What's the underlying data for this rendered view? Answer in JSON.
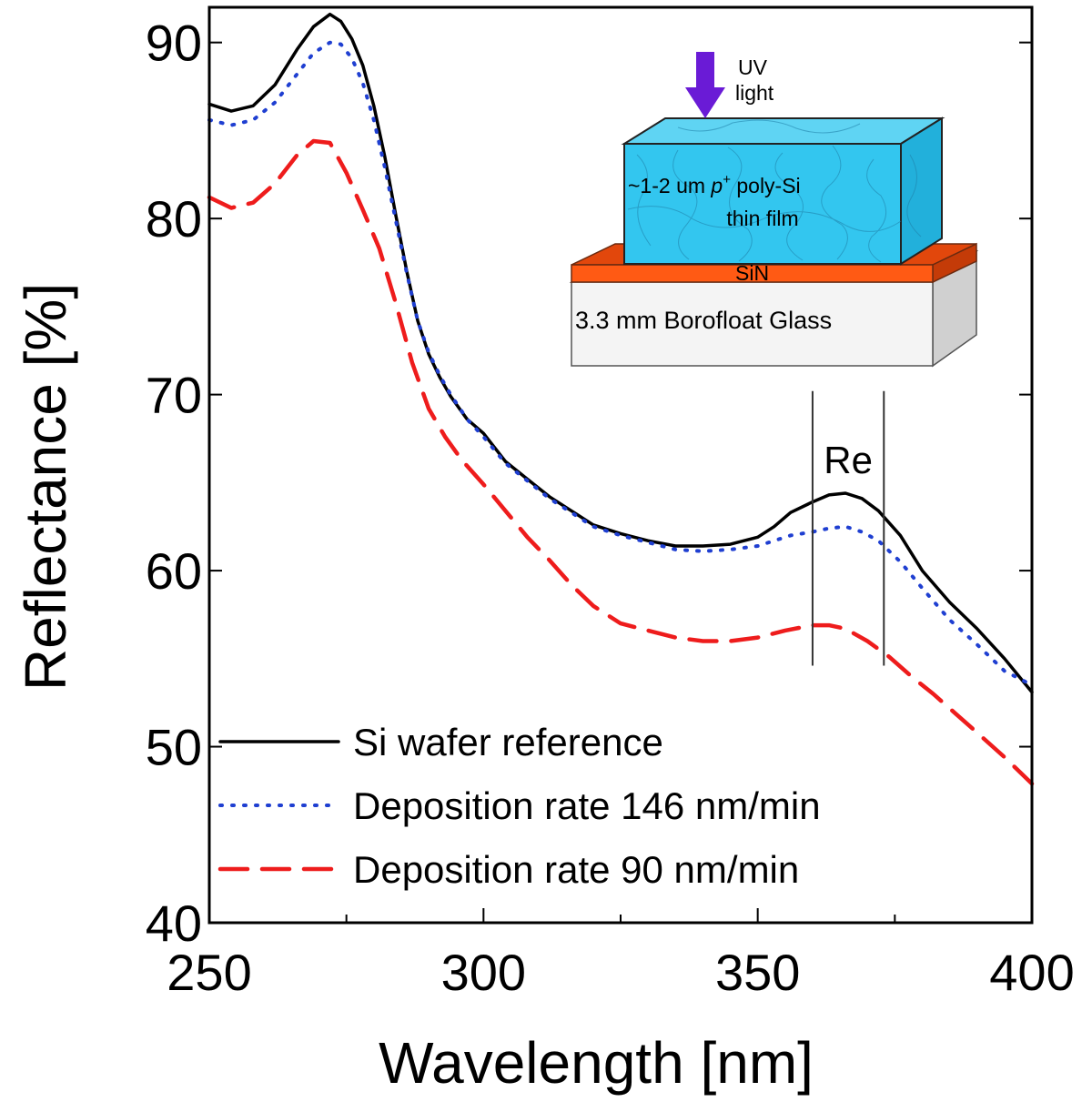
{
  "chart_data": {
    "type": "line",
    "xlabel": "Wavelength [nm]",
    "ylabel": "Reflectance [%]",
    "xlim": [
      250,
      400
    ],
    "ylim": [
      40,
      92
    ],
    "xticks": [
      250,
      300,
      350,
      400
    ],
    "xticks_minor": [
      275,
      325,
      375
    ],
    "yticks": [
      40,
      50,
      60,
      70,
      80,
      90
    ],
    "legend_position": "bottom-left",
    "series": [
      {
        "name": "Si wafer reference",
        "style": "solid",
        "color": "#000000",
        "x": [
          250,
          254,
          258,
          262,
          266,
          269,
          272,
          274,
          276,
          278,
          280,
          282,
          284,
          286,
          288,
          290,
          292,
          294,
          297,
          300,
          304,
          308,
          312,
          316,
          320,
          325,
          330,
          335,
          340,
          345,
          350,
          353,
          356,
          360,
          363,
          366,
          369,
          372,
          376,
          380,
          385,
          390,
          395,
          400
        ],
        "y": [
          86.5,
          86.1,
          86.4,
          87.6,
          89.6,
          90.9,
          91.6,
          91.2,
          90.2,
          88.7,
          86.4,
          83.5,
          80.2,
          77.0,
          74.2,
          72.3,
          71.0,
          69.9,
          68.6,
          67.8,
          66.2,
          65.2,
          64.2,
          63.4,
          62.6,
          62.1,
          61.7,
          61.4,
          61.4,
          61.5,
          61.9,
          62.5,
          63.3,
          63.9,
          64.3,
          64.4,
          64.1,
          63.4,
          62.0,
          60.0,
          58.2,
          56.7,
          55.0,
          53.1
        ]
      },
      {
        "name": "Deposition rate 146 nm/min",
        "style": "dotted",
        "color": "#1f3fd1",
        "x": [
          250,
          254,
          258,
          262,
          266,
          269,
          272,
          274,
          276,
          278,
          280,
          282,
          284,
          286,
          288,
          290,
          292,
          294,
          297,
          300,
          304,
          308,
          312,
          316,
          320,
          325,
          330,
          335,
          340,
          345,
          350,
          353,
          356,
          360,
          363,
          366,
          369,
          372,
          376,
          380,
          385,
          390,
          395,
          400
        ],
        "y": [
          85.6,
          85.3,
          85.6,
          86.6,
          88.2,
          89.4,
          90.0,
          89.9,
          89.1,
          87.7,
          85.6,
          82.9,
          79.9,
          76.9,
          74.2,
          72.4,
          71.1,
          70.0,
          68.6,
          67.6,
          66.1,
          65.1,
          64.1,
          63.3,
          62.5,
          62.0,
          61.6,
          61.2,
          61.1,
          61.2,
          61.4,
          61.7,
          62.0,
          62.2,
          62.4,
          62.5,
          62.2,
          61.7,
          60.5,
          59.0,
          57.2,
          55.8,
          54.3,
          53.5
        ]
      },
      {
        "name": "Deposition rate 90 nm/min",
        "style": "dashed",
        "color": "#ee1c1c",
        "x": [
          250,
          254,
          258,
          262,
          266,
          269,
          272,
          275,
          278,
          281,
          284,
          287,
          290,
          293,
          296,
          300,
          304,
          308,
          312,
          316,
          320,
          325,
          330,
          335,
          340,
          345,
          350,
          355,
          360,
          363,
          366,
          370,
          374,
          378,
          382,
          386,
          390,
          395,
          400
        ],
        "y": [
          81.2,
          80.6,
          80.9,
          82.0,
          83.6,
          84.4,
          84.3,
          82.6,
          80.5,
          78.3,
          75.2,
          71.8,
          69.2,
          67.6,
          66.3,
          64.9,
          63.4,
          61.9,
          60.6,
          59.2,
          58.0,
          57.0,
          56.6,
          56.2,
          56.0,
          56.0,
          56.2,
          56.6,
          56.9,
          56.9,
          56.7,
          56.0,
          55.1,
          54.0,
          53.0,
          51.9,
          50.8,
          49.4,
          47.9
        ]
      }
    ],
    "annotations": {
      "re_label": "Re",
      "re_lines_x": [
        360,
        373
      ],
      "re_lines_y": [
        54.6,
        70.2
      ]
    }
  },
  "inset": {
    "uv_label_line1": "UV",
    "uv_label_line2": "light",
    "film_line1_prefix": "~1-2 um ",
    "film_line1_italic": "p",
    "film_line1_sup": "+",
    "film_line1_suffix": " poly-Si",
    "film_line2": "thin film",
    "sin_label": "SiN",
    "glass_label": "3.3 mm Borofloat Glass",
    "colors": {
      "film": "#33c6ef",
      "sin": "#ff5a14",
      "glass": "#f4f4f4",
      "arrow": "#6a1bd6"
    }
  }
}
